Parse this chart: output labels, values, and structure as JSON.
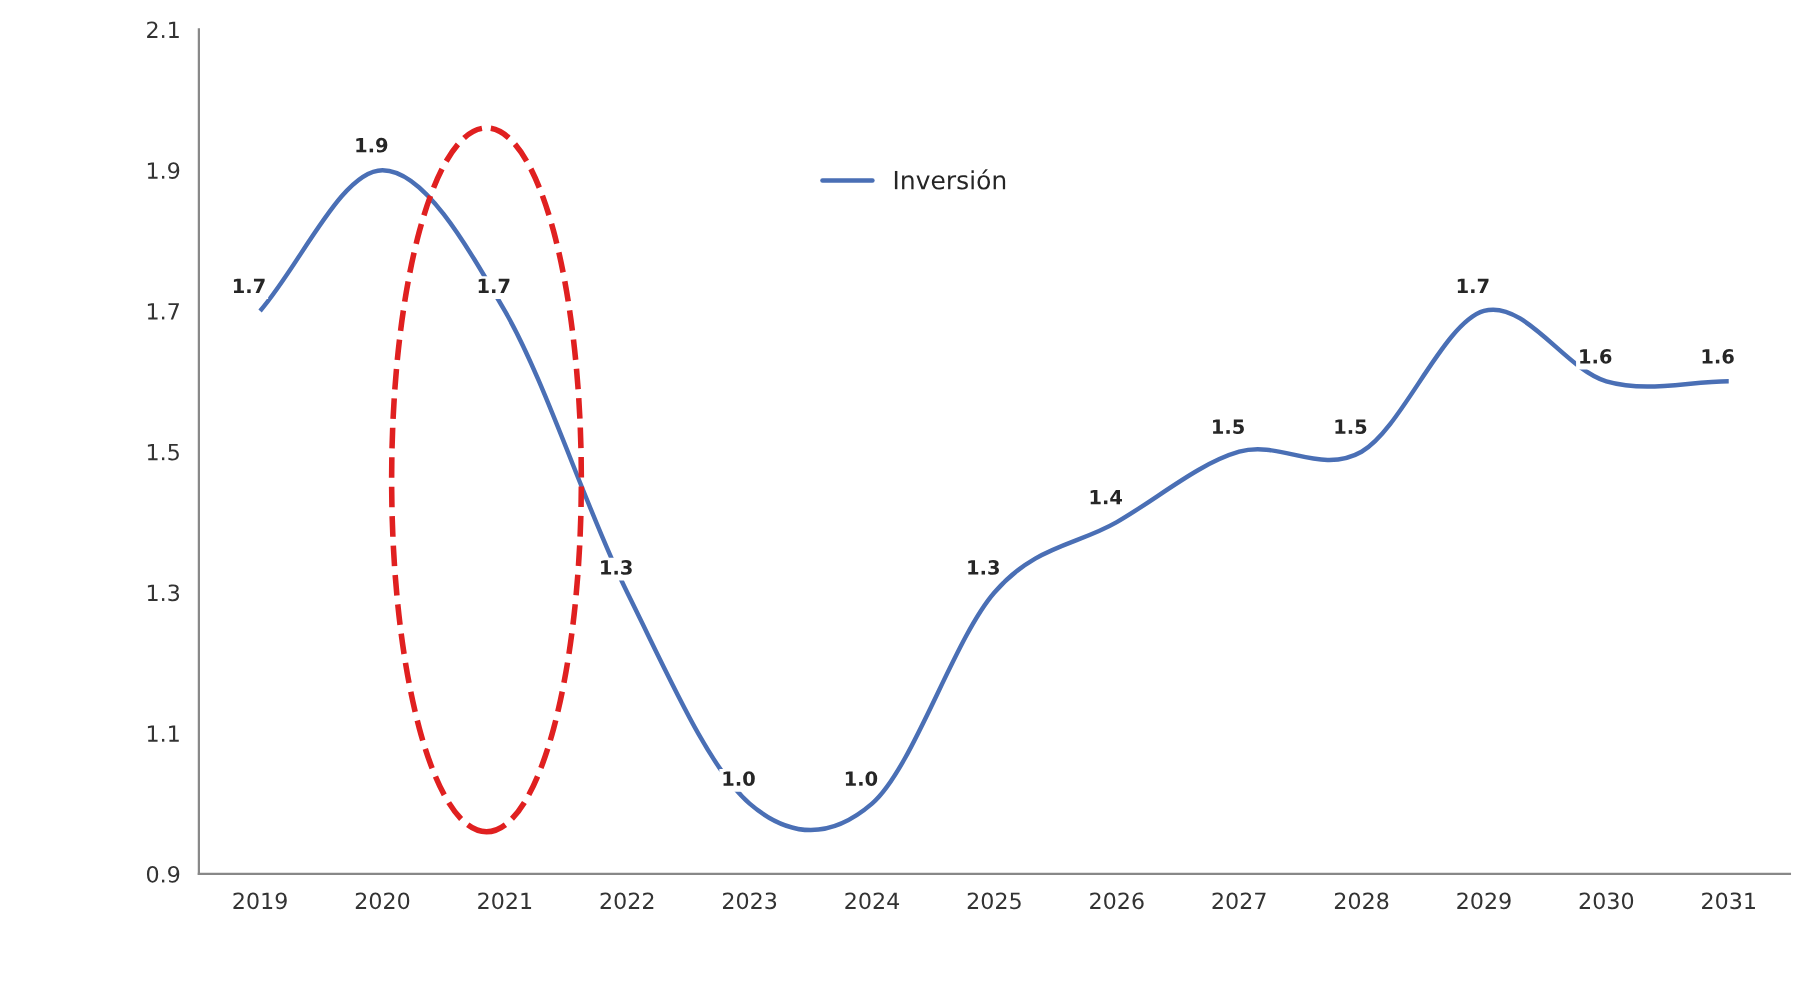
{
  "chart_data": {
    "type": "line",
    "categories": [
      "2019",
      "2020",
      "2021",
      "2022",
      "2023",
      "2024",
      "2025",
      "2026",
      "2027",
      "2028",
      "2029",
      "2030",
      "2031"
    ],
    "series": [
      {
        "name": "Inversión",
        "color": "#4a6fb5",
        "values": [
          1.7,
          1.9,
          1.7,
          1.3,
          1.0,
          1.0,
          1.3,
          1.4,
          1.5,
          1.5,
          1.7,
          1.6,
          1.6
        ],
        "value_labels": [
          "1.7",
          "1.9",
          "1.7",
          "1.3",
          "1.0",
          "1.0",
          "1.3",
          "1.4",
          "1.5",
          "1.5",
          "1.7",
          "1.6",
          "1.6"
        ]
      }
    ],
    "ylim": [
      0.9,
      2.1
    ],
    "yticks": [
      0.9,
      1.1,
      1.3,
      1.5,
      1.7,
      1.9,
      2.1
    ],
    "grid": false,
    "legend": "top",
    "marker": "none",
    "line_style": "solid"
  }
}
